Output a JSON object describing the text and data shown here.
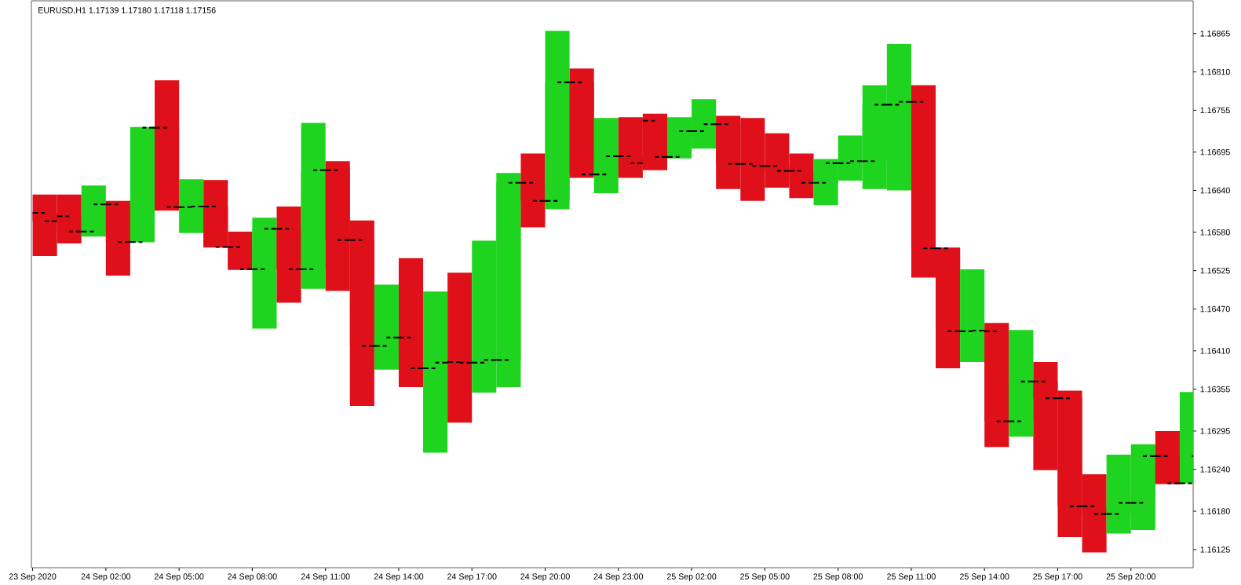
{
  "chart_data": {
    "type": "candlestick",
    "title": "EURUSD,H1 1.17139 1.17180 1.17118 1.17156",
    "x": [
      "2020-09-23T23:30",
      "2020-09-24T00:30",
      "2020-09-24T01:30",
      "2020-09-24T02:30",
      "2020-09-24T03:30",
      "2020-09-24T04:30",
      "2020-09-24T05:30",
      "2020-09-24T06:30",
      "2020-09-24T07:30",
      "2020-09-24T08:30",
      "2020-09-24T09:30",
      "2020-09-24T10:30",
      "2020-09-24T11:30",
      "2020-09-24T12:30",
      "2020-09-24T13:30",
      "2020-09-24T14:30",
      "2020-09-24T15:30",
      "2020-09-24T16:30",
      "2020-09-24T17:30",
      "2020-09-24T18:30",
      "2020-09-24T19:30",
      "2020-09-24T20:30",
      "2020-09-24T21:30",
      "2020-09-24T22:30",
      "2020-09-24T23:30",
      "2020-09-25T00:30",
      "2020-09-25T01:30",
      "2020-09-25T02:30",
      "2020-09-25T03:30",
      "2020-09-25T04:30",
      "2020-09-25T05:30",
      "2020-09-25T06:30",
      "2020-09-25T07:30",
      "2020-09-25T08:30",
      "2020-09-25T09:30",
      "2020-09-25T10:30",
      "2020-09-25T11:30",
      "2020-09-25T12:30",
      "2020-09-25T13:30",
      "2020-09-25T14:30",
      "2020-09-25T15:30",
      "2020-09-25T16:30",
      "2020-09-25T17:30",
      "2020-09-25T18:30",
      "2020-09-25T19:30",
      "2020-09-25T20:30",
      "2020-09-25T21:30",
      "2020-09-25T22:30"
    ],
    "ohlc": [
      [
        1.16608,
        1.16634,
        1.16546,
        1.16596
      ],
      [
        1.16603,
        1.16634,
        1.16564,
        1.16581
      ],
      [
        1.16581,
        1.16647,
        1.16574,
        1.1662
      ],
      [
        1.1662,
        1.16625,
        1.16518,
        1.16566
      ],
      [
        1.16566,
        1.16731,
        1.16566,
        1.1673
      ],
      [
        1.1673,
        1.16798,
        1.16611,
        1.16616
      ],
      [
        1.16616,
        1.16656,
        1.16579,
        1.16617
      ],
      [
        1.16617,
        1.16655,
        1.16558,
        1.16559
      ],
      [
        1.16559,
        1.16581,
        1.16526,
        1.16527
      ],
      [
        1.16527,
        1.16601,
        1.16442,
        1.16585
      ],
      [
        1.16585,
        1.16617,
        1.16479,
        1.16527
      ],
      [
        1.16527,
        1.16737,
        1.16499,
        1.16669
      ],
      [
        1.16669,
        1.16682,
        1.16496,
        1.16569
      ],
      [
        1.16569,
        1.16597,
        1.16331,
        1.16417
      ],
      [
        1.16417,
        1.16505,
        1.16383,
        1.16429
      ],
      [
        1.16429,
        1.16543,
        1.16358,
        1.16385
      ],
      [
        1.16385,
        1.16495,
        1.16264,
        1.16393
      ],
      [
        1.16394,
        1.16522,
        1.16307,
        1.16393
      ],
      [
        1.16393,
        1.16568,
        1.1635,
        1.16397
      ],
      [
        1.16397,
        1.16665,
        1.16358,
        1.16651
      ],
      [
        1.16651,
        1.16693,
        1.16587,
        1.16625
      ],
      [
        1.16625,
        1.16869,
        1.16613,
        1.16795
      ],
      [
        1.16795,
        1.16815,
        1.16658,
        1.16663
      ],
      [
        1.16663,
        1.16744,
        1.16636,
        1.16689
      ],
      [
        1.16689,
        1.16745,
        1.16658,
        1.16679
      ],
      [
        1.1674,
        1.1675,
        1.16669,
        1.16688
      ],
      [
        1.16688,
        1.16745,
        1.16686,
        1.16725
      ],
      [
        1.16725,
        1.16771,
        1.167,
        1.16735
      ],
      [
        1.16735,
        1.16747,
        1.16642,
        1.16678
      ],
      [
        1.16678,
        1.16744,
        1.16625,
        1.16675
      ],
      [
        1.16675,
        1.16722,
        1.16644,
        1.16668
      ],
      [
        1.16668,
        1.16693,
        1.16629,
        1.16651
      ],
      [
        1.16651,
        1.16685,
        1.16619,
        1.16679
      ],
      [
        1.16679,
        1.16719,
        1.16654,
        1.16682
      ],
      [
        1.16682,
        1.16791,
        1.16642,
        1.16763
      ],
      [
        1.16763,
        1.1685,
        1.1664,
        1.16767
      ],
      [
        1.16767,
        1.16791,
        1.16515,
        1.16557
      ],
      [
        1.16557,
        1.16558,
        1.16385,
        1.16438
      ],
      [
        1.16438,
        1.16527,
        1.16394,
        1.16439
      ],
      [
        1.16438,
        1.1645,
        1.16272,
        1.16309
      ],
      [
        1.16309,
        1.1644,
        1.16287,
        1.16366
      ],
      [
        1.16366,
        1.16394,
        1.16239,
        1.16342
      ],
      [
        1.16342,
        1.16353,
        1.16143,
        1.16187
      ],
      [
        1.16187,
        1.16233,
        1.16121,
        1.16176
      ],
      [
        1.16176,
        1.16261,
        1.16148,
        1.16192
      ],
      [
        1.16192,
        1.16276,
        1.16153,
        1.16259
      ],
      [
        1.16259,
        1.16295,
        1.16219,
        1.1622
      ],
      [
        1.1622,
        1.16351,
        1.1622,
        1.16259
      ]
    ],
    "colors": [
      "#e0101a",
      "#e0101a",
      "#1ed41e",
      "#e0101a",
      "#1ed41e",
      "#e0101a",
      "#1ed41e",
      "#e0101a",
      "#e0101a",
      "#1ed41e",
      "#e0101a",
      "#1ed41e",
      "#e0101a",
      "#e0101a",
      "#1ed41e",
      "#e0101a",
      "#1ed41e",
      "#e0101a",
      "#1ed41e",
      "#1ed41e",
      "#e0101a",
      "#1ed41e",
      "#e0101a",
      "#1ed41e",
      "#e0101a",
      "#e0101a",
      "#1ed41e",
      "#1ed41e",
      "#e0101a",
      "#e0101a",
      "#e0101a",
      "#e0101a",
      "#1ed41e",
      "#1ed41e",
      "#1ed41e",
      "#1ed41e",
      "#e0101a",
      "#e0101a",
      "#1ed41e",
      "#e0101a",
      "#1ed41e",
      "#e0101a",
      "#e0101a",
      "#e0101a",
      "#1ed41e",
      "#1ed41e",
      "#e0101a",
      "#1ed41e"
    ],
    "xlim": [
      "2020-09-23T22:57",
      "2020-09-25T22:33"
    ],
    "xticks": [
      {
        "value": "2020-09-23T23:00",
        "label": "23 Sep 2020"
      },
      {
        "value": "2020-09-24T02:00",
        "label": "24 Sep 02:00"
      },
      {
        "value": "2020-09-24T05:00",
        "label": "24 Sep 05:00"
      },
      {
        "value": "2020-09-24T08:00",
        "label": "24 Sep 08:00"
      },
      {
        "value": "2020-09-24T11:00",
        "label": "24 Sep 11:00"
      },
      {
        "value": "2020-09-24T14:00",
        "label": "24 Sep 14:00"
      },
      {
        "value": "2020-09-24T17:00",
        "label": "24 Sep 17:00"
      },
      {
        "value": "2020-09-24T20:00",
        "label": "24 Sep 20:00"
      },
      {
        "value": "2020-09-24T23:00",
        "label": "24 Sep 23:00"
      },
      {
        "value": "2020-09-25T02:00",
        "label": "25 Sep 02:00"
      },
      {
        "value": "2020-09-25T05:00",
        "label": "25 Sep 05:00"
      },
      {
        "value": "2020-09-25T08:00",
        "label": "25 Sep 08:00"
      },
      {
        "value": "2020-09-25T11:00",
        "label": "25 Sep 11:00"
      },
      {
        "value": "2020-09-25T14:00",
        "label": "25 Sep 14:00"
      },
      {
        "value": "2020-09-25T17:00",
        "label": "25 Sep 17:00"
      },
      {
        "value": "2020-09-25T20:00",
        "label": "25 Sep 20:00"
      }
    ],
    "ylim": [
      1.16099,
      1.16912
    ],
    "yticks": [
      1.16125,
      {
        "value": 1.1618,
        "label": "1.16180"
      },
      {
        "value": 1.1624,
        "label": "1.16240"
      },
      1.16295,
      1.16355,
      {
        "value": 1.1641,
        "label": "1.16410"
      },
      {
        "value": 1.1647,
        "label": "1.16470"
      },
      1.16525,
      {
        "value": 1.1658,
        "label": "1.16580"
      },
      {
        "value": 1.1664,
        "label": "1.16640"
      },
      1.16695,
      1.16755,
      {
        "value": 1.1681,
        "label": "1.16810"
      },
      1.16865
    ]
  }
}
